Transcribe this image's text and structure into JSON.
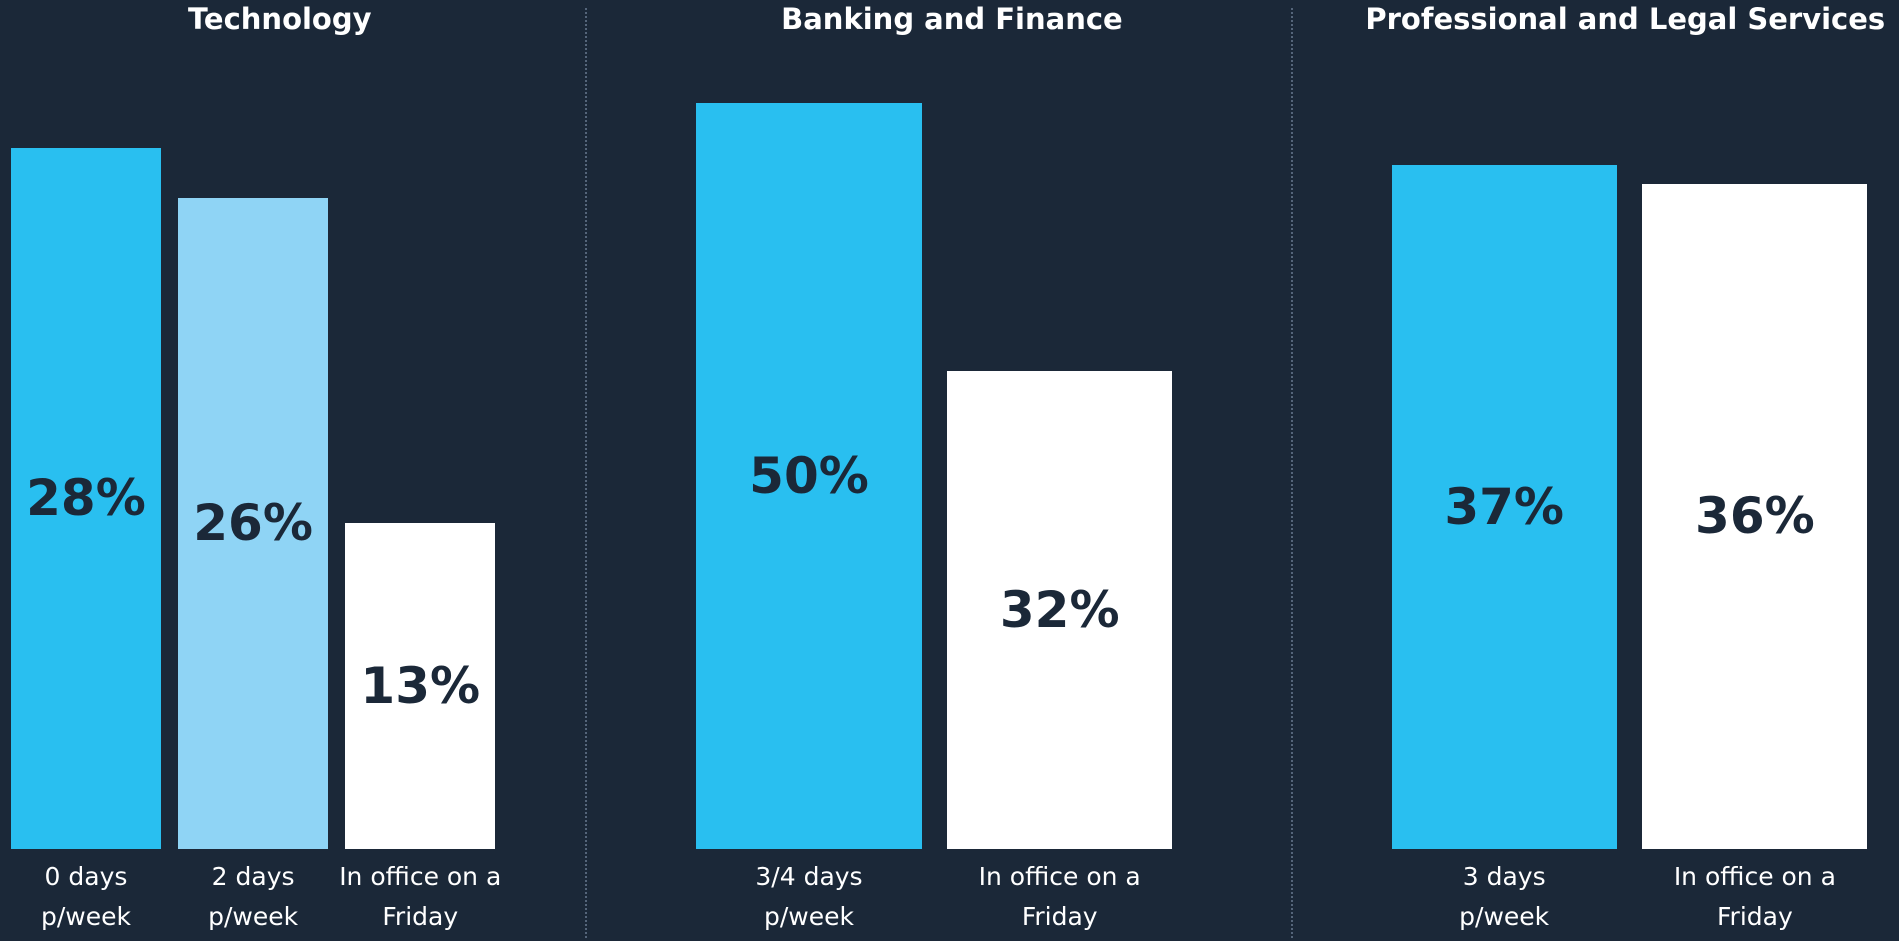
{
  "chart_data": [
    {
      "type": "bar",
      "title": "Technology",
      "categories": [
        "0 days p/week",
        "2 days p/week",
        "In office on a Friday"
      ],
      "values": [
        28,
        26,
        13
      ],
      "value_labels": [
        "28%",
        "26%",
        "13%"
      ],
      "colors": [
        "#29bff0",
        "#8fd4f5",
        "#ffffff"
      ],
      "ylim": [
        0,
        31
      ]
    },
    {
      "type": "bar",
      "title": "Banking and Finance",
      "categories": [
        "3/4 days p/week",
        "In office on a Friday"
      ],
      "values": [
        50,
        32
      ],
      "value_labels": [
        "50%",
        "32%"
      ],
      "colors": [
        "#29bff0",
        "#ffffff"
      ],
      "ylim": [
        0,
        52
      ]
    },
    {
      "type": "bar",
      "title": "Professional and Legal Services",
      "categories": [
        "3 days p/week",
        "In office on a Friday"
      ],
      "values": [
        37,
        36
      ],
      "value_labels": [
        "37%",
        "36%"
      ],
      "colors": [
        "#29bff0",
        "#ffffff"
      ],
      "ylim": [
        0,
        42
      ]
    }
  ]
}
